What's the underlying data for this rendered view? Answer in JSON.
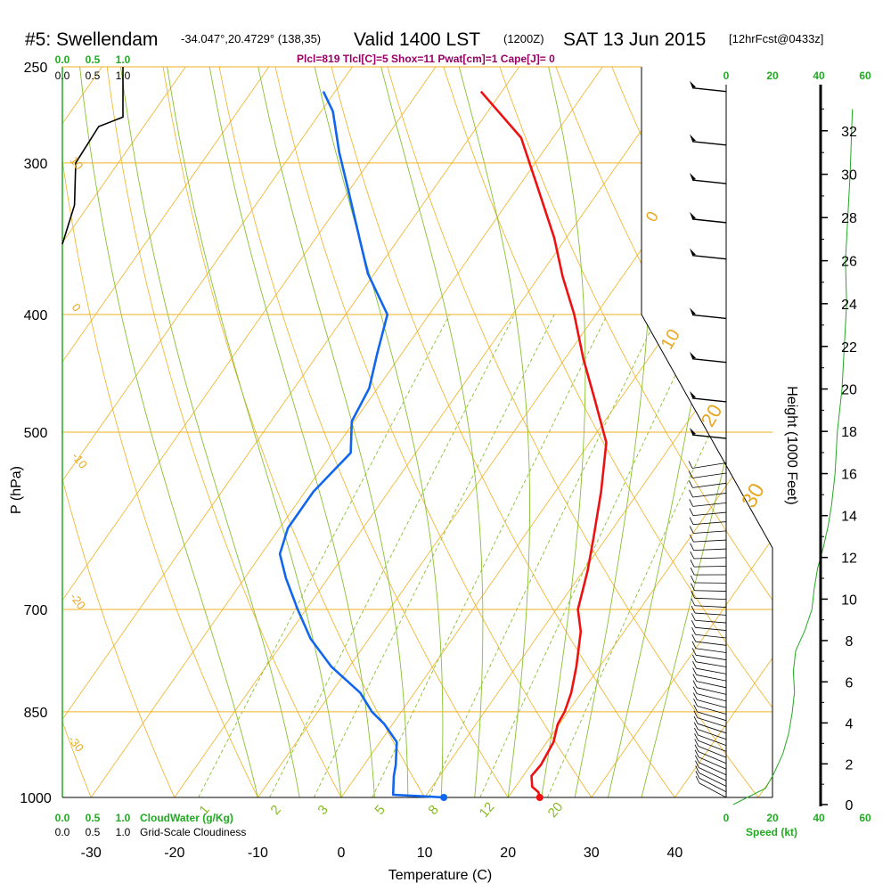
{
  "header": {
    "station": "#5: Swellendam",
    "coords": "-34.047°,20.4729° (138,35)",
    "valid": "Valid 1400 LST",
    "utc": "(1200Z)",
    "date": "SAT 13 Jun 2015",
    "forecast": "[12hrFcst@0433z]",
    "params": "Plcl=819 Tlcl[C]=5 Shox=11 Pwat[cm]=1 Cape[J]= 0"
  },
  "axes": {
    "ylabel": "P (hPa)",
    "xlabel": "Temperature (C)",
    "height_label": "Height (1000 Feet)",
    "cloud_water_label": "CloudWater (g/Kg)",
    "cloudiness_label": "Grid-Scale Cloudiness",
    "speed_label": "Speed (kt)"
  },
  "colors": {
    "isotherm": "#f0b020",
    "dry_adiabat": "#f0b020",
    "moist_adiabat": "#88c030",
    "mixing_ratio": "#88c030",
    "temperature": "#ee1111",
    "dewpoint": "#1166ee",
    "wind_speed": "#22aa22",
    "tick_green": "#22aa22",
    "wind_barb": "#000000"
  },
  "chart_data": {
    "type": "line",
    "pressure_ticks": [
      250,
      300,
      400,
      500,
      700,
      850,
      1000
    ],
    "temperature_ticks": [
      -30,
      -20,
      -10,
      0,
      10,
      20,
      30,
      40
    ],
    "height_ticks": [
      0,
      2,
      4,
      6,
      8,
      10,
      12,
      14,
      16,
      18,
      20,
      22,
      24,
      26,
      28,
      30,
      32
    ],
    "cloud_ticks_top": [
      "0.0",
      "0.5",
      "1.0"
    ],
    "cloudiness_ticks_top": [
      "0.0",
      "0.5",
      "1.0"
    ],
    "cloud_ticks_bottom": [
      "0.0",
      "0.5",
      "1.0"
    ],
    "cloudiness_ticks_bottom": [
      "0.0",
      "0.5",
      "1.0"
    ],
    "speed_ticks_top": [
      "0",
      "20",
      "40",
      "60"
    ],
    "speed_ticks_bottom": [
      "0",
      "20",
      "40",
      "60"
    ],
    "isotherm_labels": [
      "0",
      "10",
      "20",
      "30"
    ],
    "dry_adiabat_labels": [
      "10",
      "0",
      "-10",
      "-20",
      "-30"
    ],
    "mixing_ratio_labels": [
      "1",
      "2",
      "3",
      "5",
      "8",
      "12",
      "20"
    ],
    "xlim": [
      -35,
      45
    ],
    "ylim": [
      1000,
      250
    ],
    "series": [
      {
        "name": "Temperature",
        "points": [
          [
            23.8,
            1000
          ],
          [
            23.2,
            990
          ],
          [
            22.0,
            980
          ],
          [
            21.0,
            960
          ],
          [
            21.2,
            940
          ],
          [
            20.8,
            900
          ],
          [
            19.8,
            870
          ],
          [
            19.6,
            850
          ],
          [
            18.8,
            820
          ],
          [
            17.2,
            780
          ],
          [
            14.8,
            730
          ],
          [
            12.6,
            700
          ],
          [
            10.5,
            650
          ],
          [
            8.4,
            610
          ],
          [
            5.5,
            560
          ],
          [
            2.0,
            510
          ],
          [
            -3.0,
            470
          ],
          [
            -7.8,
            435
          ],
          [
            -12.6,
            400
          ],
          [
            -17.2,
            372
          ],
          [
            -21.4,
            346
          ],
          [
            -27.5,
            315
          ],
          [
            -33.8,
            286
          ],
          [
            -42.5,
            262
          ]
        ]
      },
      {
        "name": "Dewpoint",
        "points": [
          [
            12.3,
            1000
          ],
          [
            10.0,
            998
          ],
          [
            6.0,
            995
          ],
          [
            4.5,
            960
          ],
          [
            3.8,
            940
          ],
          [
            2.0,
            900
          ],
          [
            -1.0,
            870
          ],
          [
            -3.5,
            850
          ],
          [
            -6.5,
            820
          ],
          [
            -12.2,
            780
          ],
          [
            -17.0,
            740
          ],
          [
            -21.0,
            700
          ],
          [
            -25.0,
            660
          ],
          [
            -27.8,
            630
          ],
          [
            -29.0,
            600
          ],
          [
            -29.0,
            560
          ],
          [
            -27.8,
            520
          ],
          [
            -30.3,
            490
          ],
          [
            -31.0,
            460
          ],
          [
            -33.0,
            430
          ],
          [
            -35.0,
            400
          ],
          [
            -40.8,
            370
          ],
          [
            -45.8,
            340
          ],
          [
            -50.3,
            315
          ],
          [
            -54.4,
            294
          ],
          [
            -58.6,
            272
          ],
          [
            -61.4,
            262
          ]
        ]
      }
    ],
    "wind_speed_profile": [
      [
        3.0,
        0
      ],
      [
        17.0,
        0.8
      ],
      [
        20.5,
        1.5
      ],
      [
        24.5,
        2.5
      ],
      [
        27.0,
        3.5
      ],
      [
        28.5,
        4.5
      ],
      [
        29.5,
        5.5
      ],
      [
        29.0,
        6.5
      ],
      [
        30.0,
        7.5
      ],
      [
        34.0,
        8.5
      ],
      [
        37.0,
        9.5
      ],
      [
        38.0,
        10.5
      ],
      [
        39.5,
        11.5
      ],
      [
        42.0,
        12.5
      ],
      [
        44.0,
        13.5
      ],
      [
        45.5,
        14.5
      ],
      [
        47.0,
        16.0
      ],
      [
        48.0,
        18.0
      ],
      [
        50.0,
        20.0
      ],
      [
        51.0,
        22.0
      ],
      [
        52.0,
        24.0
      ],
      [
        51.5,
        26.0
      ],
      [
        52.5,
        28.0
      ],
      [
        53.5,
        30.0
      ],
      [
        54.5,
        33.0
      ]
    ],
    "cloud_water_profile": [],
    "cloudiness_profile": [
      [
        0.2,
        325
      ],
      [
        0.22,
        300
      ],
      [
        0.6,
        280
      ],
      [
        1.0,
        275
      ],
      [
        1.0,
        262
      ]
    ],
    "wind_barbs": [
      {
        "pressure": 262,
        "speed": 15,
        "dir": 300
      },
      {
        "pressure": 290,
        "speed": 15,
        "dir": 300
      },
      {
        "pressure": 312,
        "speed": 15,
        "dir": 290
      },
      {
        "pressure": 336,
        "speed": 15,
        "dir": 285
      },
      {
        "pressure": 360,
        "speed": 15,
        "dir": 280
      },
      {
        "pressure": 403,
        "speed": 15,
        "dir": 275
      },
      {
        "pressure": 438,
        "speed": 15,
        "dir": 275
      },
      {
        "pressure": 472,
        "speed": 15,
        "dir": 275
      },
      {
        "pressure": 506,
        "speed": 15,
        "dir": 270
      }
    ],
    "wind_barbs_lower": {
      "p_top": 530,
      "p_bottom": 1000,
      "count": 46
    }
  }
}
